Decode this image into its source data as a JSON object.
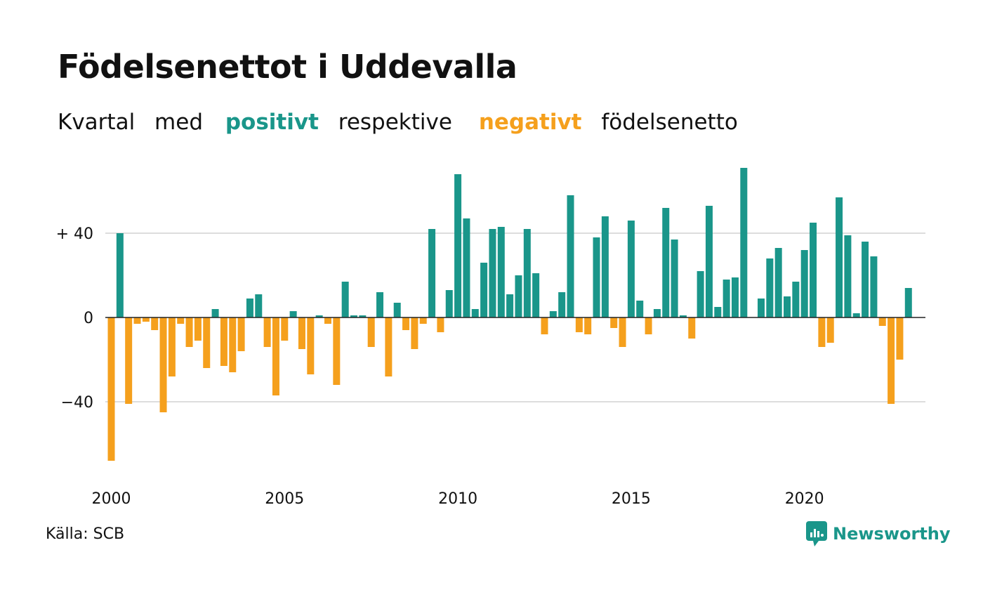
{
  "header": {
    "title": "Födelsenettot i Uddevalla",
    "subtitle": {
      "part1": "Kvartal",
      "part2": "med",
      "positive": "positivt",
      "part3": "respektive",
      "negative": "negativt",
      "part4": "födelsenetto"
    }
  },
  "footer": {
    "source": "Källa: SCB",
    "brand": "Newsworthy",
    "brand_icon": "newsworthy-logo-icon"
  },
  "colors": {
    "positive": "#1a968a",
    "negative": "#f5a01d",
    "grid": "#dddddd",
    "axis": "#222222",
    "text": "#111111"
  },
  "chart_data": {
    "type": "bar",
    "start": "2000 Q1",
    "frequency": "quarterly",
    "values": [
      -68,
      40,
      -41,
      -3,
      -2,
      -6,
      -45,
      -28,
      -3,
      -14,
      -11,
      -24,
      4,
      -23,
      -26,
      -16,
      9,
      11,
      -14,
      -37,
      -11,
      3,
      -15,
      -27,
      1,
      -3,
      -32,
      17,
      1,
      1,
      -14,
      12,
      -28,
      7,
      -6,
      -15,
      -3,
      42,
      -7,
      13,
      68,
      47,
      4,
      26,
      42,
      43,
      11,
      20,
      42,
      21,
      -8,
      3,
      12,
      58,
      -7,
      -8,
      38,
      48,
      -5,
      -14,
      46,
      8,
      -8,
      4,
      52,
      37,
      1,
      -10,
      22,
      53,
      5,
      18,
      19,
      71,
      0,
      9,
      28,
      33,
      10,
      17,
      32,
      45,
      -14,
      -12,
      57,
      39,
      2,
      36,
      29,
      -4,
      -41,
      -20,
      14
    ],
    "ylim": [
      -70,
      72
    ],
    "yticks": [
      {
        "value": 40,
        "label": "+ 40"
      },
      {
        "value": 0,
        "label": "0"
      },
      {
        "value": -40,
        "label": "−40"
      }
    ],
    "xticks": [
      {
        "year": 2000,
        "label": "2000"
      },
      {
        "year": 2005,
        "label": "2005"
      },
      {
        "year": 2010,
        "label": "2010"
      },
      {
        "year": 2015,
        "label": "2015"
      },
      {
        "year": 2020,
        "label": "2020"
      }
    ],
    "grid": true,
    "legend": "none"
  }
}
